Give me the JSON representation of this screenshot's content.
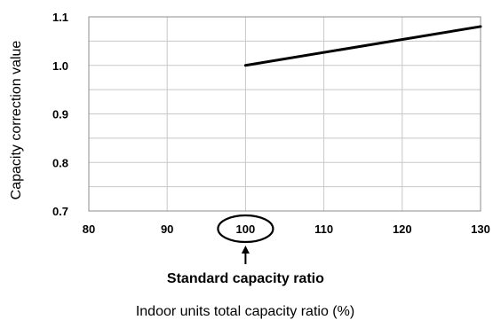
{
  "chart_data": {
    "type": "line",
    "title": "",
    "xlabel": "Indoor units total capacity ratio (%)",
    "ylabel": "Capacity correction value",
    "xlim": [
      80,
      130
    ],
    "ylim": [
      0.7,
      1.1
    ],
    "x_ticks": [
      "80",
      "90",
      "100",
      "110",
      "120",
      "130"
    ],
    "y_ticks": [
      "1.1",
      "1.0",
      "0.9",
      "0.8",
      "0.7"
    ],
    "grid": true,
    "series": [
      {
        "x": [
          100,
          130
        ],
        "y": [
          1.0,
          1.08
        ]
      }
    ],
    "annotation": {
      "text": "Standard capacity ratio",
      "x": 100,
      "marker": "circled-tick-with-up-arrow"
    }
  }
}
